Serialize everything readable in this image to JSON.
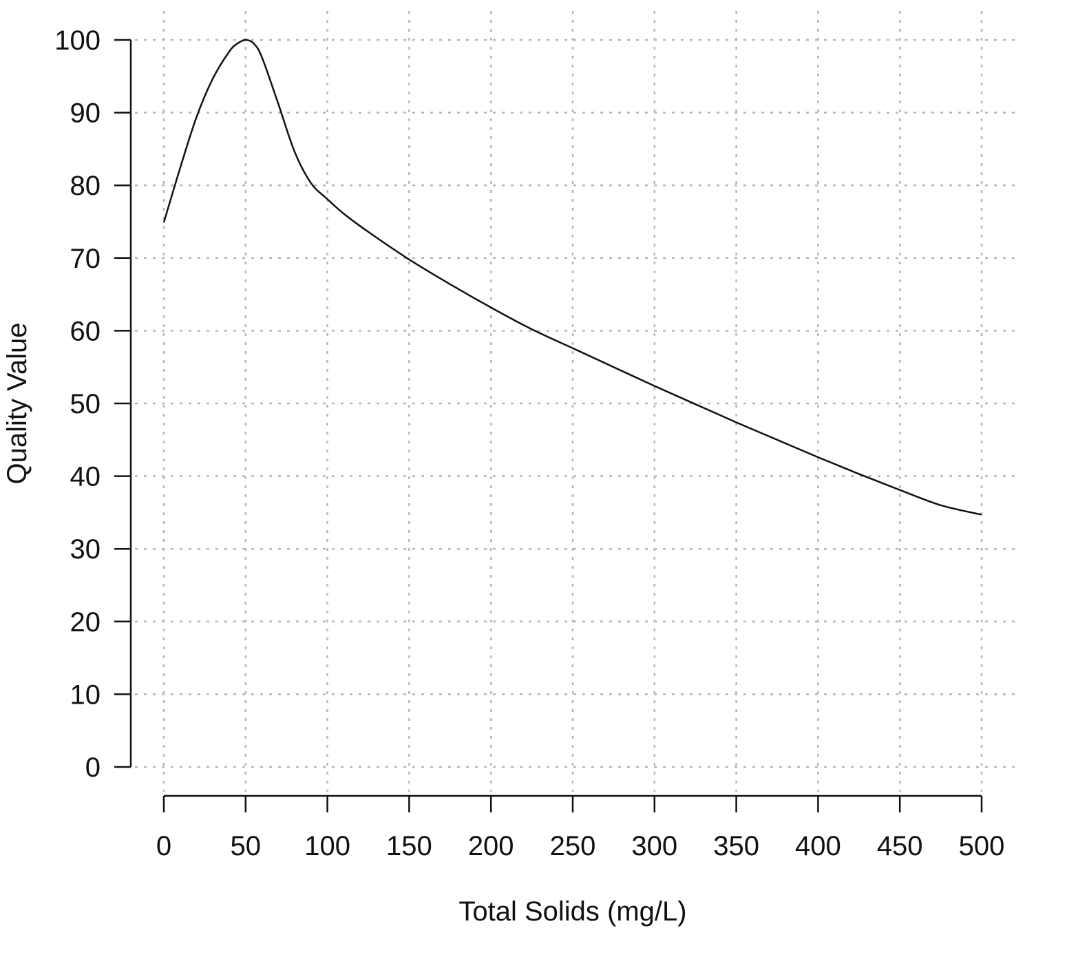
{
  "chart_data": {
    "type": "line",
    "title": "",
    "xlabel": "Total Solids (mg/L)",
    "ylabel": "Quality Value",
    "xlim": [
      0,
      500
    ],
    "ylim": [
      0,
      100
    ],
    "x_ticks": [
      0,
      50,
      100,
      150,
      200,
      250,
      300,
      350,
      400,
      450,
      500
    ],
    "y_ticks": [
      0,
      10,
      20,
      30,
      40,
      50,
      60,
      70,
      80,
      90,
      100
    ],
    "grid": true,
    "grid_style": "dotted",
    "legend": "none",
    "colors": {
      "line": "#111111",
      "grid": "#b5b5b5",
      "axis": "#111111",
      "background": "#ffffff"
    },
    "series": [
      {
        "x": [
          0,
          10,
          20,
          30,
          40,
          45,
          50,
          55,
          60,
          70,
          80,
          90,
          100,
          110,
          125,
          150,
          175,
          200,
          225,
          250,
          275,
          300,
          325,
          350,
          375,
          400,
          425,
          450,
          475,
          500
        ],
        "y": [
          74.9,
          82.4,
          89.4,
          94.7,
          98.4,
          99.5,
          100.0,
          99.5,
          97.6,
          91.2,
          84.6,
          80.3,
          78.1,
          76.1,
          73.6,
          69.8,
          66.4,
          63.2,
          60.2,
          57.6,
          55.0,
          52.4,
          49.9,
          47.4,
          45.0,
          42.6,
          40.3,
          38.1,
          36.0,
          34.7
        ]
      }
    ]
  }
}
